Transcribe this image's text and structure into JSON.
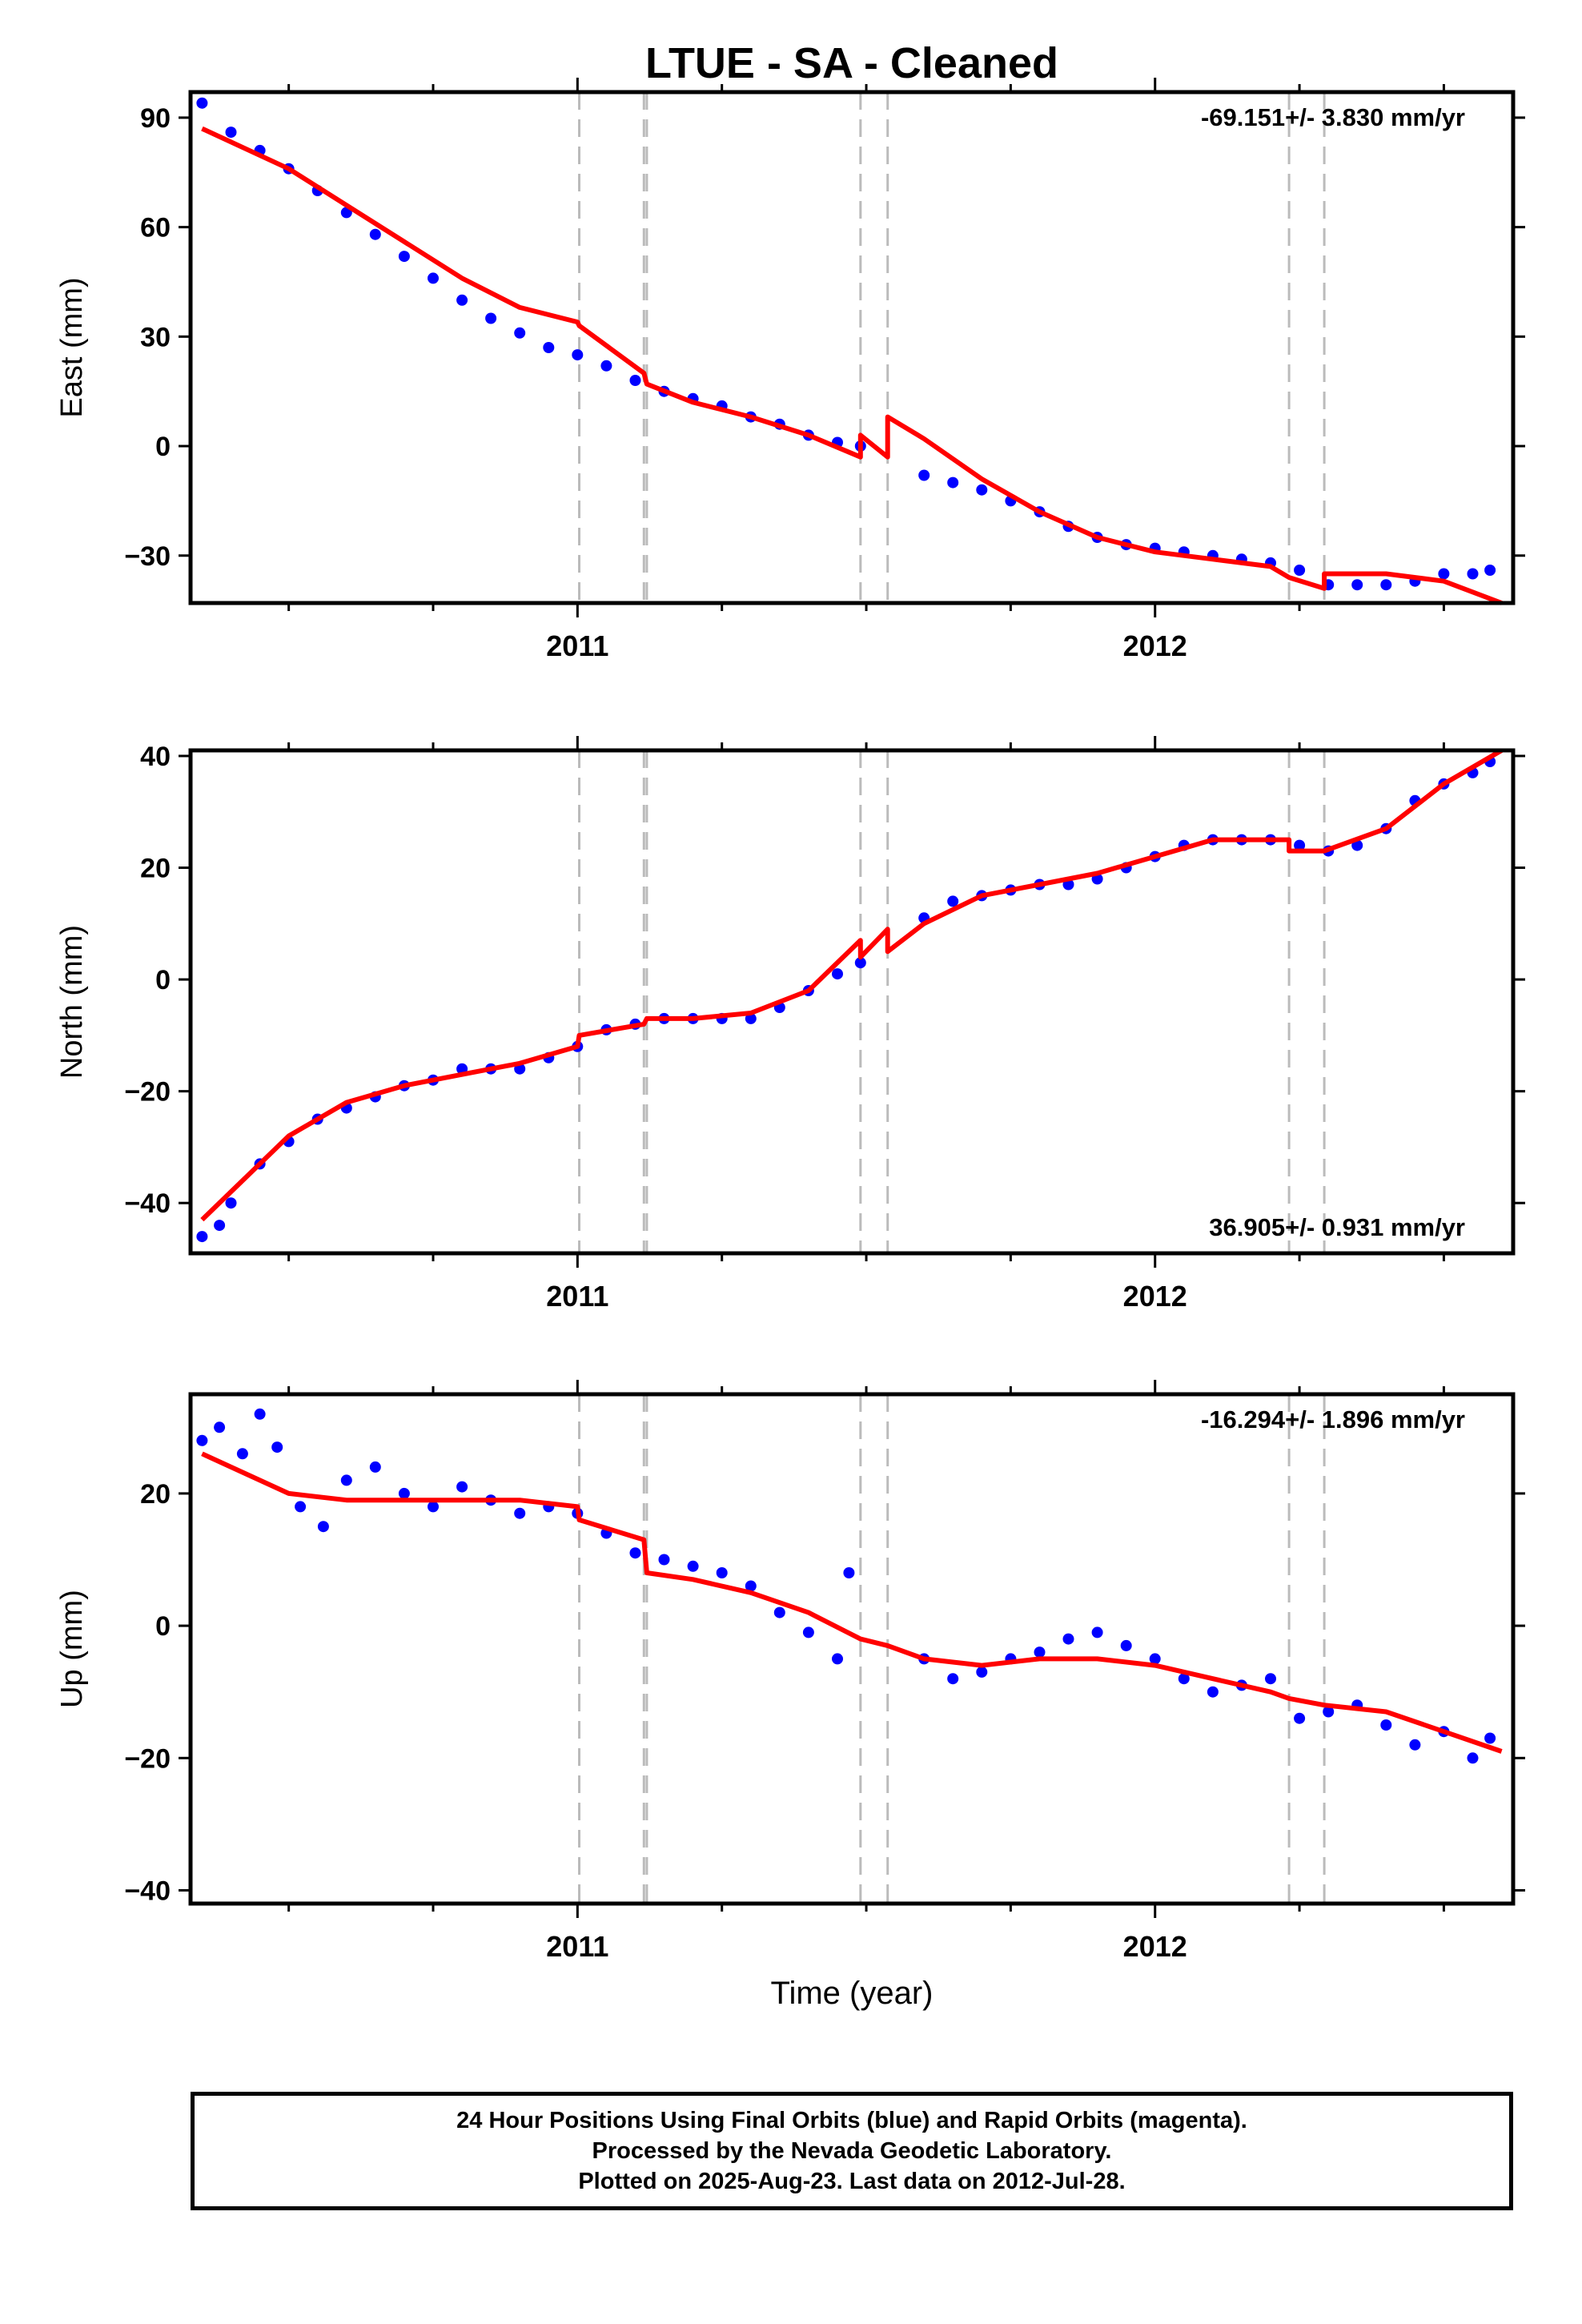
{
  "title": "LTUE  - SA - Cleaned",
  "xlabel": "Time (year)",
  "footer": {
    "line1": "24 Hour Positions Using Final Orbits (blue) and Rapid Orbits (magenta).",
    "line2": "Processed by the Nevada Geodetic Laboratory.",
    "line3": "Plotted on 2025-Aug-23. Last data on 2012-Jul-28."
  },
  "colors": {
    "data": "#0000ff",
    "model": "#ff0000",
    "steps": "#bbbbbb",
    "axis": "#000000"
  },
  "chart_data": [
    {
      "type": "scatter",
      "ylabel": "East (mm)",
      "rate": "-69.151+/- 3.830 mm/yr",
      "rate_position": "top-right",
      "xlim": [
        2010.33,
        2012.62
      ],
      "ylim": [
        -43,
        97
      ],
      "xticks": [
        2011,
        2012
      ],
      "yticks": [
        90,
        60,
        30,
        0,
        -30
      ],
      "step_epochs": [
        2011.003,
        2011.115,
        2011.12,
        2011.49,
        2011.537,
        2012.232,
        2012.293
      ],
      "series": [
        {
          "role": "observations",
          "x": [
            2010.35,
            2010.4,
            2010.45,
            2010.5,
            2010.55,
            2010.6,
            2010.65,
            2010.7,
            2010.75,
            2010.8,
            2010.85,
            2010.9,
            2010.95,
            2011.0,
            2011.05,
            2011.1,
            2011.15,
            2011.2,
            2011.25,
            2011.3,
            2011.35,
            2011.4,
            2011.45,
            2011.49,
            2011.6,
            2011.65,
            2011.7,
            2011.75,
            2011.8,
            2011.85,
            2011.9,
            2011.95,
            2012.0,
            2012.05,
            2012.1,
            2012.15,
            2012.2,
            2012.25,
            2012.3,
            2012.35,
            2012.4,
            2012.45,
            2012.5,
            2012.55,
            2012.58
          ],
          "y": [
            94,
            86,
            81,
            76,
            70,
            64,
            58,
            52,
            46,
            40,
            35,
            31,
            27,
            25,
            22,
            18,
            15,
            13,
            11,
            8,
            6,
            3,
            1,
            0,
            -8,
            -10,
            -12,
            -15,
            -18,
            -22,
            -25,
            -27,
            -28,
            -29,
            -30,
            -31,
            -32,
            -34,
            -38,
            -38,
            -38,
            -37,
            -35,
            -35,
            -34
          ]
        },
        {
          "role": "model",
          "x": [
            2010.35,
            2010.5,
            2010.6,
            2010.7,
            2010.8,
            2010.9,
            2011.0,
            2011.003,
            2011.115,
            2011.12,
            2011.2,
            2011.3,
            2011.4,
            2011.49,
            2011.49,
            2011.537,
            2011.537,
            2011.6,
            2011.7,
            2011.8,
            2011.9,
            2012.0,
            2012.1,
            2012.2,
            2012.232,
            2012.293,
            2012.293,
            2012.4,
            2012.5,
            2012.6
          ],
          "y": [
            87,
            76,
            66,
            56,
            46,
            38,
            34,
            33,
            20,
            17,
            12,
            8,
            3,
            -3,
            3,
            -3,
            8,
            2,
            -9,
            -18,
            -25,
            -29,
            -31,
            -33,
            -36,
            -39,
            -35,
            -35,
            -37,
            -43
          ]
        }
      ]
    },
    {
      "type": "scatter",
      "ylabel": "North (mm)",
      "rate": "36.905+/- 0.931 mm/yr",
      "rate_position": "bottom-right",
      "xlim": [
        2010.33,
        2012.62
      ],
      "ylim": [
        -49,
        41
      ],
      "xticks": [
        2011,
        2012
      ],
      "yticks": [
        40,
        20,
        0,
        -20,
        -40
      ],
      "step_epochs": [
        2011.003,
        2011.115,
        2011.12,
        2011.49,
        2011.537,
        2012.232,
        2012.293
      ],
      "series": [
        {
          "role": "observations",
          "x": [
            2010.35,
            2010.38,
            2010.4,
            2010.45,
            2010.5,
            2010.55,
            2010.6,
            2010.65,
            2010.7,
            2010.75,
            2010.8,
            2010.85,
            2010.9,
            2010.95,
            2011.0,
            2011.05,
            2011.1,
            2011.15,
            2011.2,
            2011.25,
            2011.3,
            2011.35,
            2011.4,
            2011.45,
            2011.49,
            2011.6,
            2011.65,
            2011.7,
            2011.75,
            2011.8,
            2011.85,
            2011.9,
            2011.95,
            2012.0,
            2012.05,
            2012.1,
            2012.15,
            2012.2,
            2012.25,
            2012.3,
            2012.35,
            2012.4,
            2012.45,
            2012.5,
            2012.55,
            2012.58
          ],
          "y": [
            -46,
            -44,
            -40,
            -33,
            -29,
            -25,
            -23,
            -21,
            -19,
            -18,
            -16,
            -16,
            -16,
            -14,
            -12,
            -9,
            -8,
            -7,
            -7,
            -7,
            -7,
            -5,
            -2,
            1,
            3,
            11,
            14,
            15,
            16,
            17,
            17,
            18,
            20,
            22,
            24,
            25,
            25,
            25,
            24,
            23,
            24,
            27,
            32,
            35,
            37,
            39
          ]
        },
        {
          "role": "model",
          "x": [
            2010.35,
            2010.4,
            2010.5,
            2010.6,
            2010.7,
            2010.8,
            2010.9,
            2011.0,
            2011.003,
            2011.115,
            2011.12,
            2011.2,
            2011.3,
            2011.4,
            2011.49,
            2011.49,
            2011.537,
            2011.537,
            2011.6,
            2011.7,
            2011.8,
            2011.9,
            2012.0,
            2012.1,
            2012.232,
            2012.232,
            2012.293,
            2012.293,
            2012.4,
            2012.5,
            2012.6
          ],
          "y": [
            -43,
            -38,
            -28,
            -22,
            -19,
            -17,
            -15,
            -12,
            -10,
            -8,
            -7,
            -7,
            -6,
            -2,
            7,
            4,
            9,
            5,
            10,
            15,
            17,
            19,
            22,
            25,
            25,
            23,
            23,
            23,
            27,
            35,
            41
          ]
        }
      ]
    },
    {
      "type": "scatter",
      "ylabel": "Up (mm)",
      "rate": "-16.294+/- 1.896 mm/yr",
      "rate_position": "top-right",
      "xlim": [
        2010.33,
        2012.62
      ],
      "ylim": [
        -42,
        35
      ],
      "xticks": [
        2011,
        2012
      ],
      "yticks": [
        20,
        0,
        -20,
        -40
      ],
      "step_epochs": [
        2011.003,
        2011.115,
        2011.12,
        2011.49,
        2011.537,
        2012.232,
        2012.293
      ],
      "series": [
        {
          "role": "observations",
          "x": [
            2010.35,
            2010.38,
            2010.42,
            2010.45,
            2010.48,
            2010.52,
            2010.56,
            2010.6,
            2010.65,
            2010.7,
            2010.75,
            2010.8,
            2010.85,
            2010.9,
            2010.95,
            2011.0,
            2011.05,
            2011.1,
            2011.15,
            2011.2,
            2011.25,
            2011.3,
            2011.35,
            2011.4,
            2011.45,
            2011.47,
            2011.6,
            2011.65,
            2011.7,
            2011.75,
            2011.8,
            2011.85,
            2011.9,
            2011.95,
            2012.0,
            2012.05,
            2012.1,
            2012.15,
            2012.2,
            2012.25,
            2012.3,
            2012.35,
            2012.4,
            2012.45,
            2012.5,
            2012.55,
            2012.58
          ],
          "y": [
            28,
            30,
            26,
            32,
            27,
            18,
            15,
            22,
            24,
            20,
            18,
            21,
            19,
            17,
            18,
            17,
            14,
            11,
            10,
            9,
            8,
            6,
            2,
            -1,
            -5,
            8,
            -5,
            -8,
            -7,
            -5,
            -4,
            -2,
            -1,
            -3,
            -5,
            -8,
            -10,
            -9,
            -8,
            -14,
            -13,
            -12,
            -15,
            -18,
            -16,
            -20,
            -17
          ]
        },
        {
          "role": "model",
          "x": [
            2010.35,
            2010.4,
            2010.5,
            2010.6,
            2010.7,
            2010.8,
            2010.9,
            2011.0,
            2011.003,
            2011.115,
            2011.12,
            2011.2,
            2011.3,
            2011.4,
            2011.49,
            2011.537,
            2011.6,
            2011.7,
            2011.8,
            2011.9,
            2012.0,
            2012.1,
            2012.2,
            2012.232,
            2012.293,
            2012.4,
            2012.5,
            2012.6
          ],
          "y": [
            26,
            24,
            20,
            19,
            19,
            19,
            19,
            18,
            16,
            13,
            8,
            7,
            5,
            2,
            -2,
            -3,
            -5,
            -6,
            -5,
            -5,
            -6,
            -8,
            -10,
            -11,
            -12,
            -13,
            -16,
            -19
          ]
        }
      ]
    }
  ]
}
